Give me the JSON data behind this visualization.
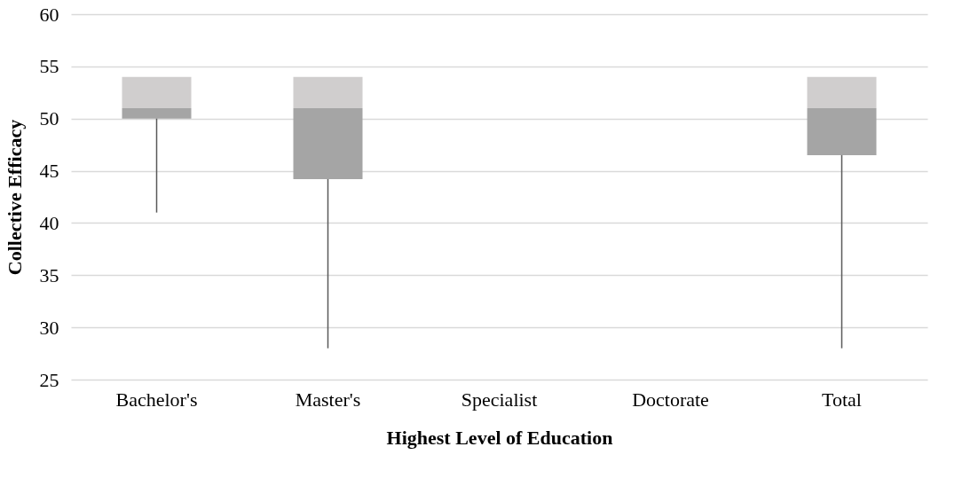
{
  "chart_data": {
    "type": "box",
    "xlabel": "Highest Level of Education",
    "ylabel": "Collective Efficacy",
    "categories": [
      "Bachelor's",
      "Master's",
      "Specialist",
      "Doctorate",
      "Total"
    ],
    "series": [
      {
        "color": "#a5a5a5",
        "boxes": [
          {
            "low": 41,
            "q1": 50,
            "median": 51,
            "q3": 54,
            "high": 54
          },
          {
            "low": 28,
            "q1": 44.2,
            "median": 51,
            "q3": 54,
            "high": 54
          },
          null,
          null,
          {
            "low": 28,
            "q1": 46.5,
            "median": 51,
            "q3": 54,
            "high": 54
          }
        ]
      }
    ],
    "ylim": [
      25,
      60
    ],
    "yticks": [
      25,
      30,
      35,
      40,
      45,
      50,
      55,
      60
    ],
    "grid": "y"
  }
}
